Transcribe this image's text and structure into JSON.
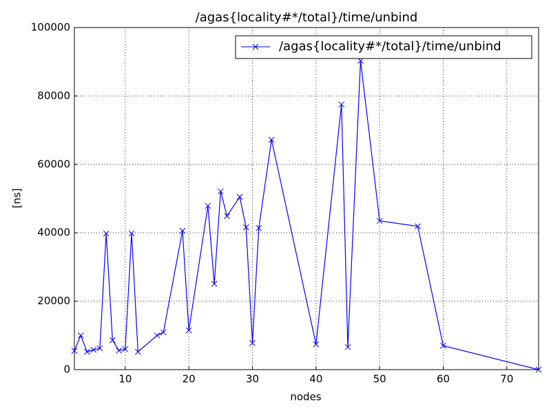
{
  "chart_data": {
    "type": "line",
    "title": "/agas{locality#*/total}/time/unbind",
    "x_label": "nodes",
    "y_label": "[ns]",
    "x": [
      2,
      3,
      4,
      5,
      6,
      7,
      8,
      9,
      10,
      11,
      12,
      15,
      16,
      19,
      20,
      23,
      24,
      25,
      26,
      28,
      29,
      30,
      31,
      33,
      40,
      44,
      45,
      47,
      50,
      56,
      60,
      75
    ],
    "series": [
      {
        "name": "/agas{locality#*/total}/time/unbind",
        "color": "#0000ff",
        "values": [
          5500,
          10000,
          5200,
          5800,
          6200,
          39800,
          8600,
          5600,
          6000,
          39800,
          5200,
          10000,
          10900,
          40600,
          11500,
          47900,
          25100,
          52100,
          44900,
          50500,
          41600,
          7800,
          41400,
          67200,
          7400,
          77500,
          6600,
          90300,
          43500,
          41900,
          7000,
          0
        ]
      }
    ],
    "xlim": [
      2,
      75
    ],
    "xticks": [
      10,
      20,
      30,
      40,
      50,
      60,
      70
    ],
    "ylim": [
      0,
      100000
    ],
    "yticks": [
      0,
      20000,
      40000,
      60000,
      80000,
      100000
    ],
    "grid": true,
    "legend": "upper right"
  }
}
